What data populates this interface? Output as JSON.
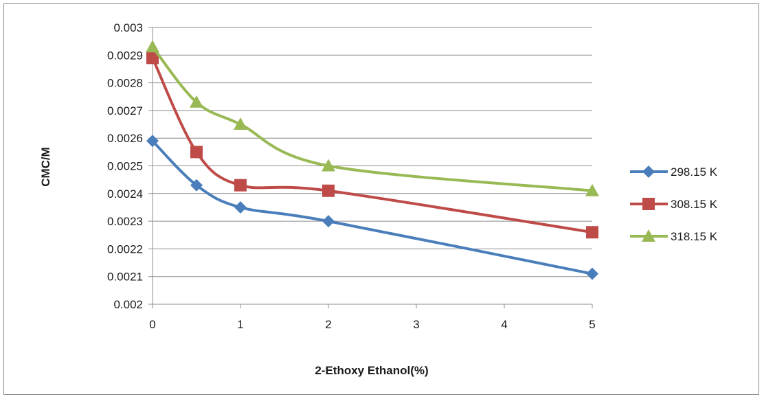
{
  "chart_data": {
    "type": "line",
    "title": "",
    "xlabel": "2-Ethoxy Ethanol(%)",
    "ylabel": "CMC/M",
    "xlim": [
      0,
      5
    ],
    "ylim": [
      0.002,
      0.003
    ],
    "x_ticks": [
      "0",
      "1",
      "2",
      "3",
      "4",
      "5"
    ],
    "y_ticks": [
      "0.002",
      "0.0021",
      "0.0022",
      "0.0023",
      "0.0024",
      "0.0025",
      "0.0026",
      "0.0027",
      "0.0028",
      "0.0029",
      "0.003"
    ],
    "grid": "horizontal",
    "legend_position": "right",
    "series": [
      {
        "name": "298.15 K",
        "color": "#4a7ebb",
        "marker": "diamond",
        "x": [
          0,
          0.5,
          1,
          2,
          5
        ],
        "y": [
          0.00259,
          0.00243,
          0.00235,
          0.0023,
          0.00211
        ]
      },
      {
        "name": "308.15 K",
        "color": "#be4b48",
        "marker": "square",
        "x": [
          0,
          0.5,
          1,
          2,
          5
        ],
        "y": [
          0.00289,
          0.00255,
          0.00243,
          0.00241,
          0.00226
        ]
      },
      {
        "name": "318.15 K",
        "color": "#98b954",
        "marker": "triangle",
        "x": [
          0,
          0.5,
          1,
          2,
          5
        ],
        "y": [
          0.00293,
          0.00273,
          0.00265,
          0.0025,
          0.00241
        ]
      }
    ]
  }
}
